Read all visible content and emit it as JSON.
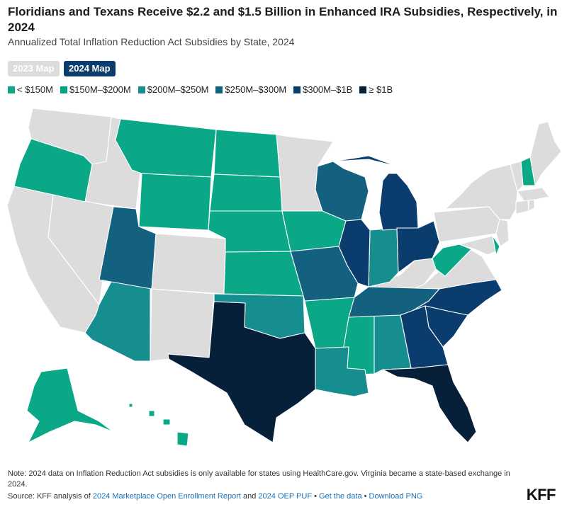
{
  "title": "Floridians and Texans Receive $2.2 and $1.5 Billion in Enhanced IRA Subsidies, Respectively, in 2024",
  "subtitle": "Annualized Total Inflation Reduction Act Subsidies by State, 2024",
  "toggles": {
    "map_2023": "2023 Map",
    "map_2024": "2024 Map",
    "active": "2024 Map"
  },
  "legend": [
    {
      "label": "< $150M",
      "color": "#0aa886"
    },
    {
      "label": "$150M–$200M",
      "color": "#00a382"
    },
    {
      "label": "$200M–$250M",
      "color": "#168d8f"
    },
    {
      "label": "$250M–$300M",
      "color": "#13607f"
    },
    {
      "label": "$300M–$1B",
      "color": "#0b3c6e"
    },
    {
      "label": "≥ $1B",
      "color": "#06203a"
    }
  ],
  "colors": {
    "no_data": "#dcdcdc",
    "lt150": "#0aa886",
    "m150_200": "#00a382",
    "m200_250": "#168d8f",
    "m250_300": "#13607f",
    "m300_1b": "#0b3c6e",
    "gte1b": "#06203a",
    "link": "#1a6fb5"
  },
  "note": "Note: 2024 data on Inflation Reduction Act subsidies is only available for states using HealthCare.gov. Virginia became a state-based exchange in 2024.",
  "source": {
    "prefix": "Source: KFF analysis of ",
    "link1": "2024 Marketplace Open Enrollment Report",
    "and": " and ",
    "link2": "2024 OEP PUF",
    "sep": " • ",
    "link3": "Get the data",
    "link4": "Download PNG"
  },
  "brand": "KFF"
}
